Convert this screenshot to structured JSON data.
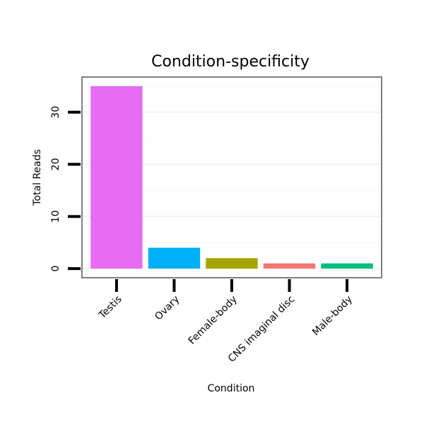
{
  "chart_data": {
    "type": "bar",
    "title": "Condition-specificity",
    "xlabel": "Condition",
    "ylabel": "Total Reads",
    "categories": [
      "Testis",
      "Ovary",
      "Female-body",
      "CNS imaginal disc",
      "Male-body"
    ],
    "values": [
      35,
      4,
      2,
      1,
      1
    ],
    "colors": [
      "#E76BF3",
      "#00B0F6",
      "#A3A500",
      "#F8766D",
      "#00BF7D"
    ],
    "y_ticks": [
      0,
      10,
      20,
      30
    ],
    "ylim": [
      -1.75,
      36.75
    ],
    "grid": true,
    "legend": "none"
  }
}
